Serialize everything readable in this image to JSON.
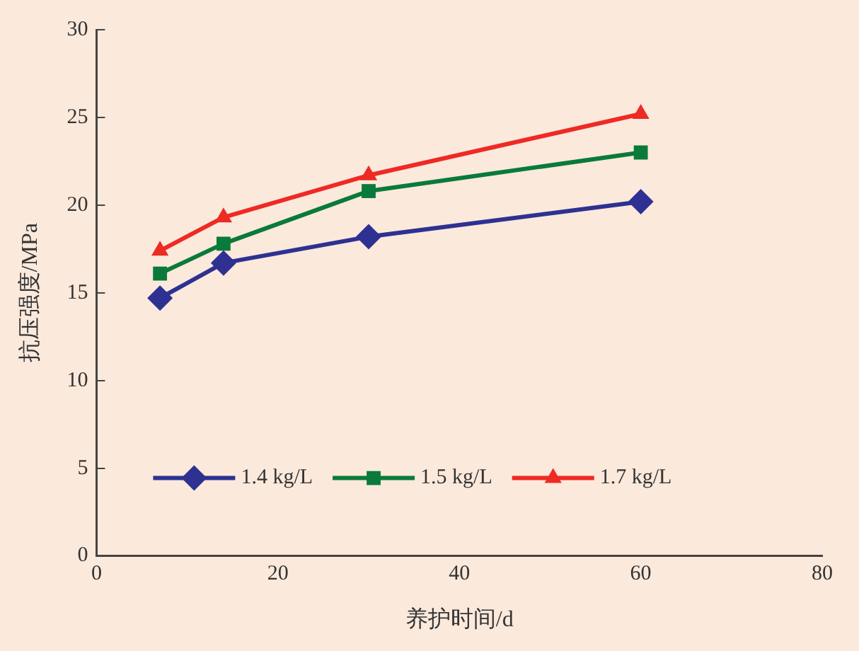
{
  "chart_data": {
    "type": "line",
    "xlabel": "养护时间/d",
    "ylabel": "抗压强度/MPa",
    "x": [
      7,
      14,
      30,
      60
    ],
    "series": [
      {
        "name": "1.4 kg/L",
        "color": "#2e3192",
        "marker": "diamond",
        "values": [
          14.7,
          16.7,
          18.2,
          20.2
        ]
      },
      {
        "name": "1.5 kg/L",
        "color": "#0a7a3a",
        "marker": "square",
        "values": [
          16.1,
          17.8,
          20.8,
          23.0
        ]
      },
      {
        "name": "1.7 kg/L",
        "color": "#ee2a24",
        "marker": "triangle",
        "values": [
          17.4,
          19.3,
          21.7,
          25.2
        ]
      }
    ],
    "xlim": [
      0,
      80
    ],
    "xticks": [
      0,
      20,
      40,
      60,
      80
    ],
    "ylim": [
      0,
      30
    ],
    "yticks": [
      0,
      5,
      10,
      15,
      20,
      25,
      30
    ],
    "grid": false,
    "legend": "bottom",
    "line_style": "solid"
  }
}
